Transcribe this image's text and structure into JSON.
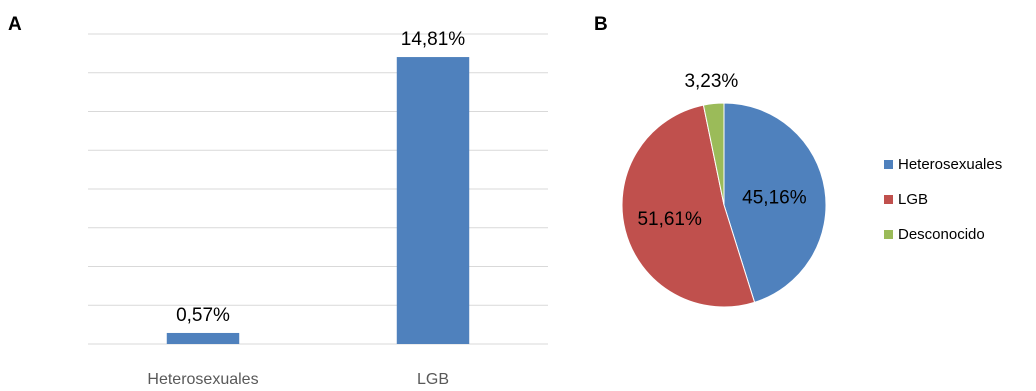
{
  "panels": {
    "a_label": "A",
    "b_label": "B"
  },
  "chart_data": [
    {
      "type": "bar",
      "categories": [
        "Heterosexuales",
        "LGB"
      ],
      "values": [
        0.57,
        14.81
      ],
      "data_labels": [
        "0,57%",
        "14,81%"
      ],
      "color": "#4F81BD",
      "ylim": [
        0,
        16
      ],
      "gridlines": 8,
      "grid": true,
      "title": "",
      "xlabel": "",
      "ylabel": ""
    },
    {
      "type": "pie",
      "categories": [
        "Heterosexuales",
        "LGB",
        "Desconocido"
      ],
      "values": [
        45.16,
        51.61,
        3.23
      ],
      "data_labels": [
        "45,16%",
        "51,61%",
        "3,23%"
      ],
      "colors": [
        "#4F81BD",
        "#C0504D",
        "#9BBB59"
      ],
      "legend": "right",
      "title": ""
    }
  ]
}
